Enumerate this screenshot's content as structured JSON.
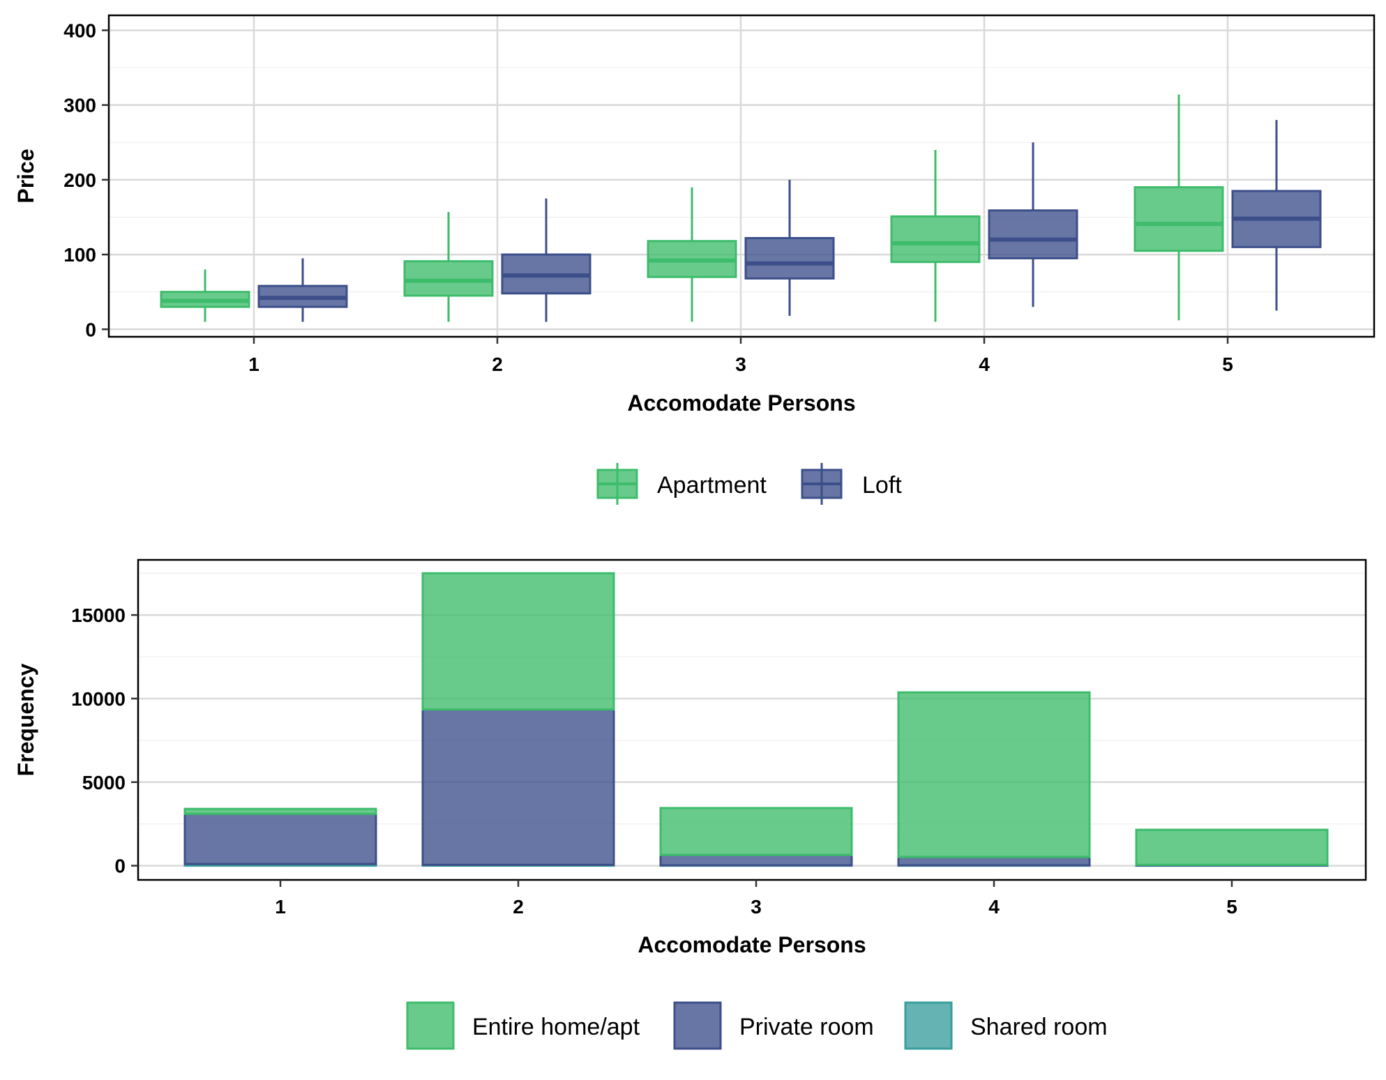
{
  "chart_data": [
    {
      "type": "boxplot",
      "xlabel": "Accomodate Persons",
      "ylabel": "Price",
      "categories": [
        "1",
        "2",
        "3",
        "4",
        "5"
      ],
      "yticks": [
        0,
        100,
        200,
        300,
        400
      ],
      "ylim": [
        -10,
        420
      ],
      "grid": true,
      "legend_position": "bottom",
      "series": [
        {
          "name": "Apartment",
          "color": "#3dbc6b",
          "boxes": [
            {
              "min": 10,
              "q1": 30,
              "median": 38,
              "q3": 50,
              "max": 80
            },
            {
              "min": 10,
              "q1": 45,
              "median": 65,
              "q3": 91,
              "max": 157
            },
            {
              "min": 10,
              "q1": 70,
              "median": 92,
              "q3": 118,
              "max": 190
            },
            {
              "min": 10,
              "q1": 90,
              "median": 115,
              "q3": 151,
              "max": 240
            },
            {
              "min": 12,
              "q1": 105,
              "median": 141,
              "q3": 190,
              "max": 314
            }
          ]
        },
        {
          "name": "Loft",
          "color": "#3c4f8a",
          "boxes": [
            {
              "min": 10,
              "q1": 30,
              "median": 42,
              "q3": 58,
              "max": 95
            },
            {
              "min": 10,
              "q1": 48,
              "median": 72,
              "q3": 100,
              "max": 175
            },
            {
              "min": 18,
              "q1": 68,
              "median": 88,
              "q3": 122,
              "max": 200
            },
            {
              "min": 30,
              "q1": 95,
              "median": 120,
              "q3": 159,
              "max": 250
            },
            {
              "min": 25,
              "q1": 110,
              "median": 148,
              "q3": 185,
              "max": 280
            }
          ]
        }
      ]
    },
    {
      "type": "bar",
      "stacked": true,
      "xlabel": "Accomodate Persons",
      "ylabel": "Frequency",
      "categories": [
        "1",
        "2",
        "3",
        "4",
        "5"
      ],
      "yticks": [
        0,
        5000,
        10000,
        15000
      ],
      "ylim": [
        -850,
        18300
      ],
      "grid": true,
      "legend_position": "bottom",
      "series": [
        {
          "name": "Shared room",
          "color": "#3a9d9d",
          "values": [
            100,
            50,
            20,
            20,
            10
          ]
        },
        {
          "name": "Private room",
          "color": "#3c4f8a",
          "values": [
            3000,
            9300,
            620,
            500,
            40
          ]
        },
        {
          "name": "Entire home/apt",
          "color": "#3dbc6b",
          "values": [
            300,
            8150,
            2810,
            9850,
            2100
          ]
        }
      ],
      "legend_order": [
        "Entire home/apt",
        "Private room",
        "Shared room"
      ]
    }
  ]
}
